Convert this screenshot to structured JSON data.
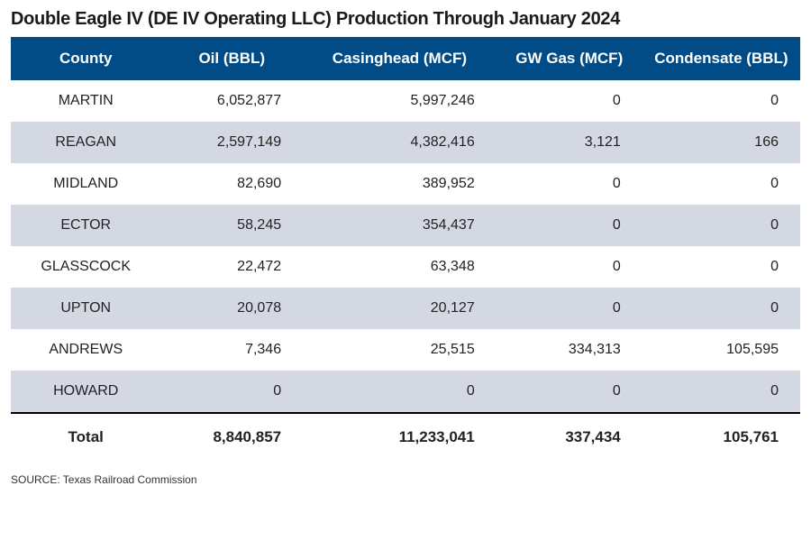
{
  "title": "Double Eagle IV (DE IV Operating LLC) Production Through January 2024",
  "colors": {
    "header_bg": "#014b86",
    "header_text": "#ffffff",
    "row_alt_bg": "#d4d8e2",
    "row_plain_bg": "#ffffff",
    "text": "#222222",
    "total_border": "#000000"
  },
  "table": {
    "columns": [
      "County",
      "Oil (BBL)",
      "Casinghead (MCF)",
      "GW Gas (MCF)",
      "Condensate (BBL)"
    ],
    "rows": [
      {
        "county": "MARTIN",
        "oil": "6,052,877",
        "casinghead": "5,997,246",
        "gw_gas": "0",
        "condensate": "0"
      },
      {
        "county": "REAGAN",
        "oil": "2,597,149",
        "casinghead": "4,382,416",
        "gw_gas": "3,121",
        "condensate": "166"
      },
      {
        "county": "MIDLAND",
        "oil": "82,690",
        "casinghead": "389,952",
        "gw_gas": "0",
        "condensate": "0"
      },
      {
        "county": "ECTOR",
        "oil": "58,245",
        "casinghead": "354,437",
        "gw_gas": "0",
        "condensate": "0"
      },
      {
        "county": "GLASSCOCK",
        "oil": "22,472",
        "casinghead": "63,348",
        "gw_gas": "0",
        "condensate": "0"
      },
      {
        "county": "UPTON",
        "oil": "20,078",
        "casinghead": "20,127",
        "gw_gas": "0",
        "condensate": "0"
      },
      {
        "county": "ANDREWS",
        "oil": "7,346",
        "casinghead": "25,515",
        "gw_gas": "334,313",
        "condensate": "105,595"
      },
      {
        "county": "HOWARD",
        "oil": "0",
        "casinghead": "0",
        "gw_gas": "0",
        "condensate": "0"
      }
    ],
    "total": {
      "label": "Total",
      "oil": "8,840,857",
      "casinghead": "11,233,041",
      "gw_gas": "337,434",
      "condensate": "105,761"
    }
  },
  "source": "SOURCE: Texas Railroad Commission"
}
